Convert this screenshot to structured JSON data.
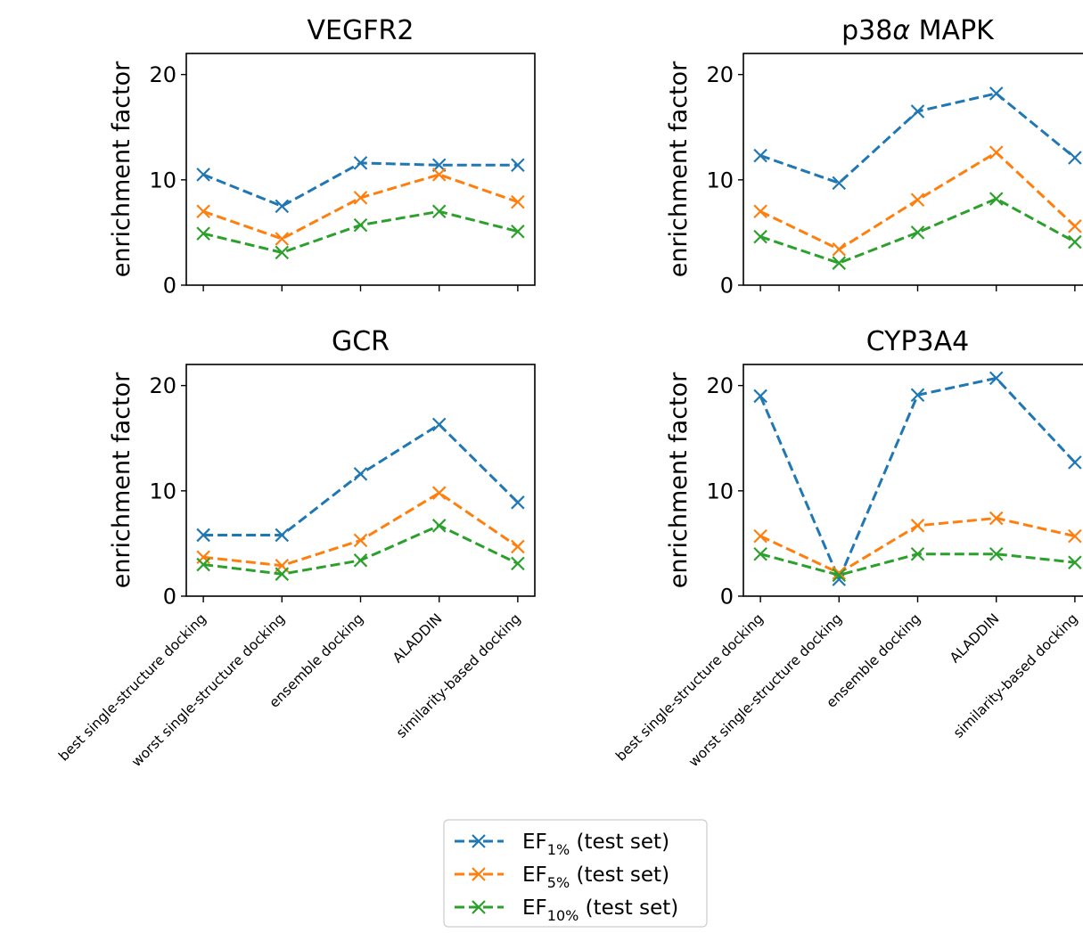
{
  "chart_data": {
    "type": "line",
    "categories": [
      "best single-structure docking",
      "worst single-structure docking",
      "ensemble docking",
      "ALADDIN",
      "similarity-based docking"
    ],
    "ylim": [
      0,
      22
    ],
    "yticks": [
      0,
      10,
      20
    ],
    "grid": false,
    "marker": "x",
    "linestyle": "dashed",
    "series_style": [
      {
        "color": "#1f77b4",
        "legend_main": "EF",
        "legend_sub": "1%",
        "legend_suffix": " (test set)"
      },
      {
        "color": "#ff7f0e",
        "legend_main": "EF",
        "legend_sub": "5%",
        "legend_suffix": " (test set)"
      },
      {
        "color": "#2ca02c",
        "legend_main": "EF",
        "legend_sub": "10%",
        "legend_suffix": " (test set)"
      }
    ],
    "legend_placement": "bottom-center",
    "panels": [
      {
        "title": "VEGFR2",
        "ylabel": "enrichment factor",
        "show_xticklabels": false,
        "series": [
          {
            "values": [
              10.5,
              7.5,
              11.6,
              11.4,
              11.4
            ]
          },
          {
            "values": [
              7.0,
              4.4,
              8.3,
              10.5,
              7.9
            ]
          },
          {
            "values": [
              4.9,
              3.1,
              5.7,
              7.0,
              5.1
            ]
          }
        ]
      },
      {
        "title": "p38α MAPK",
        "title_main": "p38",
        "title_italic": "α",
        "title_rest": " MAPK",
        "ylabel": "enrichment factor",
        "show_xticklabels": false,
        "series": [
          {
            "values": [
              12.3,
              9.7,
              16.5,
              18.2,
              12.1
            ]
          },
          {
            "values": [
              7.0,
              3.4,
              8.1,
              12.6,
              5.6
            ]
          },
          {
            "values": [
              4.6,
              2.1,
              5.0,
              8.2,
              4.1
            ]
          }
        ]
      },
      {
        "title": "GCR",
        "ylabel": "enrichment factor",
        "show_xticklabels": true,
        "series": [
          {
            "values": [
              5.8,
              5.8,
              11.6,
              16.3,
              8.9
            ]
          },
          {
            "values": [
              3.7,
              2.9,
              5.3,
              9.8,
              4.7
            ]
          },
          {
            "values": [
              3.0,
              2.1,
              3.4,
              6.7,
              3.1
            ]
          }
        ]
      },
      {
        "title": "CYP3A4",
        "ylabel": "enrichment factor",
        "show_xticklabels": true,
        "series": [
          {
            "values": [
              19.0,
              1.6,
              19.1,
              20.7,
              12.7
            ]
          },
          {
            "values": [
              5.7,
              2.2,
              6.7,
              7.4,
              5.7
            ]
          },
          {
            "values": [
              4.0,
              2.0,
              4.0,
              4.0,
              3.2
            ]
          }
        ]
      }
    ]
  }
}
